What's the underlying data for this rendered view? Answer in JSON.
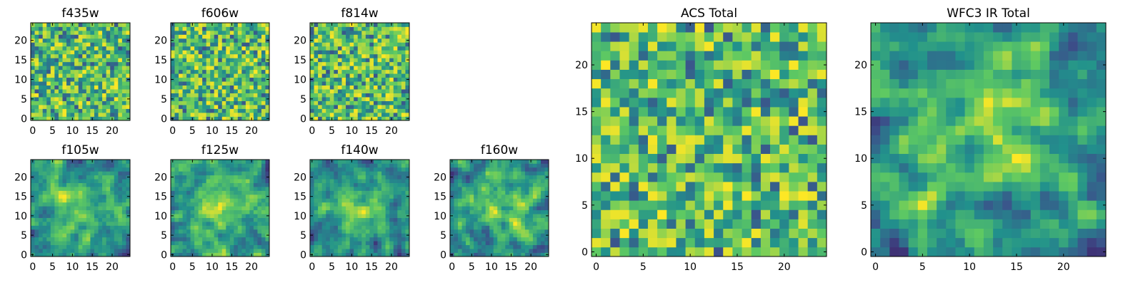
{
  "figure": {
    "background": "#ffffff",
    "colormap": [
      "#440154",
      "#3b528b",
      "#21918c",
      "#5ec962",
      "#fde725"
    ]
  },
  "chart_data": [
    {
      "type": "heatmap",
      "title": "f435w",
      "grid": [
        25,
        25
      ],
      "xticks": [
        0,
        5,
        10,
        15,
        20
      ],
      "yticks": [
        0,
        5,
        10,
        15,
        20
      ],
      "xlim": [
        -0.5,
        24.5
      ],
      "ylim": [
        -0.5,
        24.5
      ],
      "field": "noise",
      "seed": 11
    },
    {
      "type": "heatmap",
      "title": "f606w",
      "grid": [
        25,
        25
      ],
      "xticks": [
        0,
        5,
        10,
        15,
        20
      ],
      "yticks": [
        0,
        5,
        10,
        15,
        20
      ],
      "xlim": [
        -0.5,
        24.5
      ],
      "ylim": [
        -0.5,
        24.5
      ],
      "field": "noise",
      "seed": 23
    },
    {
      "type": "heatmap",
      "title": "f814w",
      "grid": [
        25,
        25
      ],
      "xticks": [
        0,
        5,
        10,
        15,
        20
      ],
      "yticks": [
        0,
        5,
        10,
        15,
        20
      ],
      "xlim": [
        -0.5,
        24.5
      ],
      "ylim": [
        -0.5,
        24.5
      ],
      "field": "noise",
      "seed": 37
    },
    {
      "type": "heatmap",
      "title": "f105w",
      "grid": [
        25,
        25
      ],
      "xticks": [
        0,
        5,
        10,
        15,
        20
      ],
      "yticks": [
        0,
        5,
        10,
        15,
        20
      ],
      "xlim": [
        -0.5,
        24.5
      ],
      "ylim": [
        -0.5,
        24.5
      ],
      "field": "smooth",
      "seed": 41
    },
    {
      "type": "heatmap",
      "title": "f125w",
      "grid": [
        25,
        25
      ],
      "xticks": [
        0,
        5,
        10,
        15,
        20
      ],
      "yticks": [
        0,
        5,
        10,
        15,
        20
      ],
      "xlim": [
        -0.5,
        24.5
      ],
      "ylim": [
        -0.5,
        24.5
      ],
      "field": "smooth",
      "seed": 53
    },
    {
      "type": "heatmap",
      "title": "f140w",
      "grid": [
        25,
        25
      ],
      "xticks": [
        0,
        5,
        10,
        15,
        20
      ],
      "yticks": [
        0,
        5,
        10,
        15,
        20
      ],
      "xlim": [
        -0.5,
        24.5
      ],
      "ylim": [
        -0.5,
        24.5
      ],
      "field": "smooth",
      "seed": 67
    },
    {
      "type": "heatmap",
      "title": "f160w",
      "grid": [
        25,
        25
      ],
      "xticks": [
        0,
        5,
        10,
        15,
        20
      ],
      "yticks": [
        0,
        5,
        10,
        15,
        20
      ],
      "xlim": [
        -0.5,
        24.5
      ],
      "ylim": [
        -0.5,
        24.5
      ],
      "field": "smooth",
      "seed": 79
    },
    {
      "type": "heatmap",
      "title": "ACS Total",
      "grid": [
        25,
        25
      ],
      "xticks": [
        0,
        5,
        10,
        15,
        20
      ],
      "yticks": [
        0,
        5,
        10,
        15,
        20
      ],
      "xlim": [
        -0.5,
        24.5
      ],
      "ylim": [
        -0.5,
        24.5
      ],
      "field": "noise",
      "seed": 97
    },
    {
      "type": "heatmap",
      "title": "WFC3 IR Total",
      "grid": [
        25,
        25
      ],
      "xticks": [
        0,
        5,
        10,
        15,
        20
      ],
      "yticks": [
        0,
        5,
        10,
        15,
        20
      ],
      "xlim": [
        -0.5,
        24.5
      ],
      "ylim": [
        -0.5,
        24.5
      ],
      "field": "smooth",
      "seed": 131
    }
  ]
}
